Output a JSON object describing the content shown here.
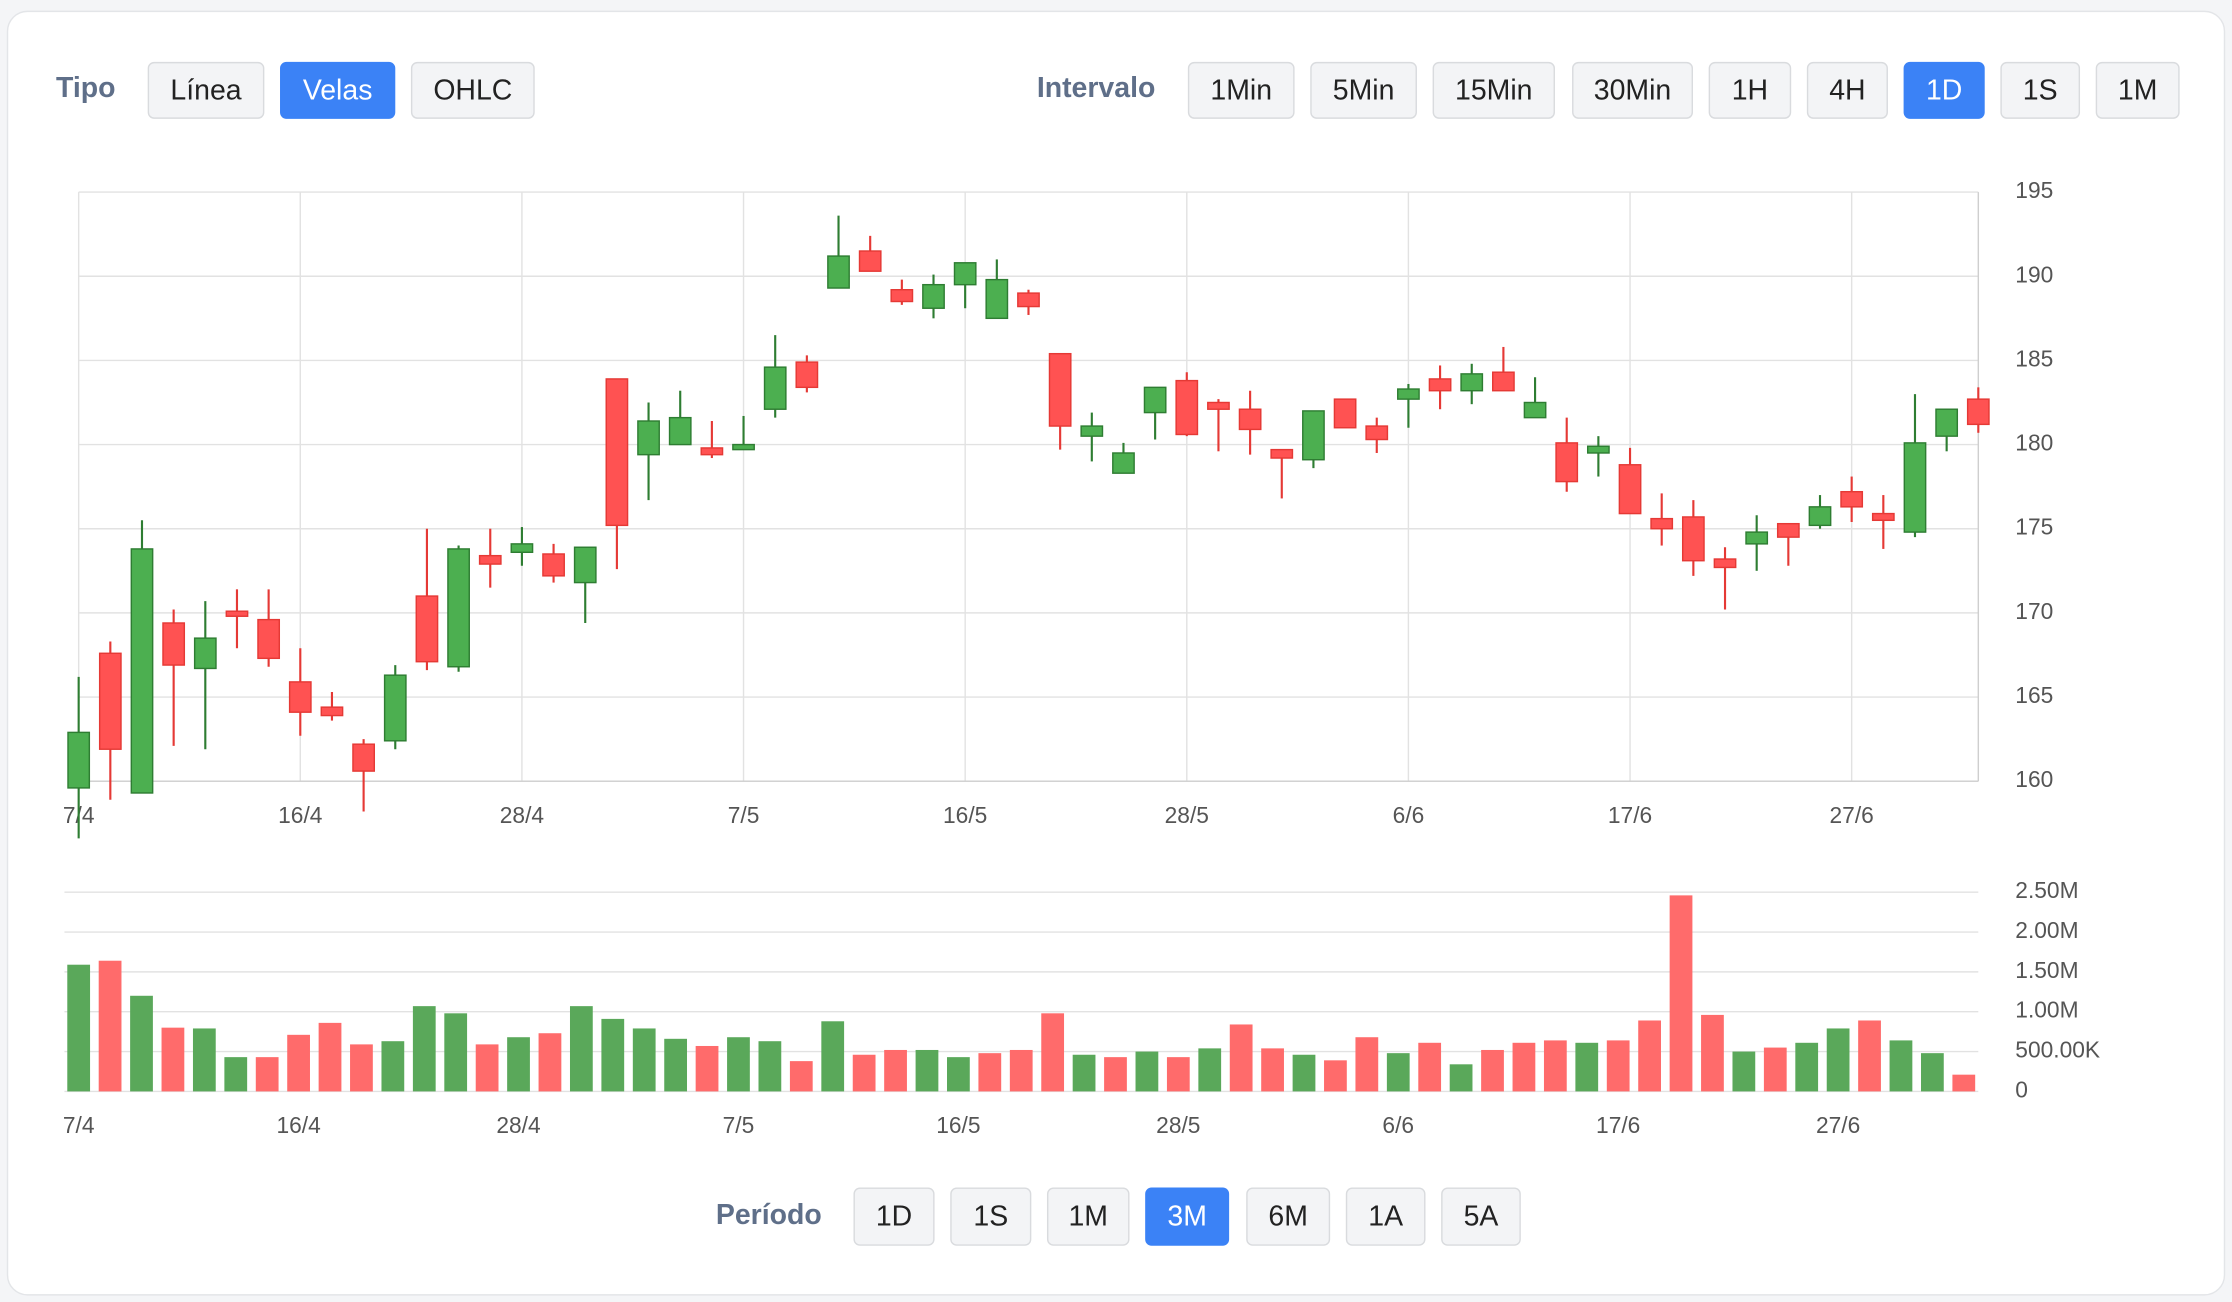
{
  "controls": {
    "tipo": {
      "label": "Tipo",
      "options": [
        "Línea",
        "Velas",
        "OHLC"
      ],
      "selected": 1
    },
    "intervalo": {
      "label": "Intervalo",
      "options": [
        "1Min",
        "5Min",
        "15Min",
        "30Min",
        "1H",
        "4H",
        "1D",
        "1S",
        "1M"
      ],
      "selected": 6
    },
    "periodo": {
      "label": "Período",
      "options": [
        "1D",
        "1S",
        "1M",
        "3M",
        "6M",
        "1A",
        "5A"
      ],
      "selected": 3
    }
  },
  "chart_data": [
    {
      "type": "candlestick",
      "categories": [
        "7/4",
        null,
        null,
        null,
        null,
        null,
        null,
        "16/4",
        null,
        null,
        null,
        null,
        null,
        null,
        "28/4",
        null,
        null,
        null,
        null,
        null,
        null,
        "7/5",
        null,
        null,
        null,
        null,
        null,
        null,
        "16/5",
        null,
        null,
        null,
        null,
        null,
        null,
        "28/5",
        null,
        null,
        null,
        null,
        null,
        null,
        "6/6",
        null,
        null,
        null,
        null,
        null,
        null,
        "17/6",
        null,
        null,
        null,
        null,
        null,
        null,
        "27/6",
        null,
        null,
        null,
        null
      ],
      "open": [
        159.6,
        167.6,
        159.3,
        169.4,
        166.7,
        170.1,
        169.6,
        165.9,
        164.4,
        162.2,
        162.4,
        171.0,
        166.8,
        173.4,
        173.6,
        173.5,
        171.8,
        183.9,
        179.4,
        180.0,
        179.8,
        179.7,
        182.1,
        184.9,
        189.3,
        191.5,
        189.2,
        188.1,
        189.5,
        187.5,
        189.0,
        185.4,
        180.5,
        178.3,
        181.9,
        183.8,
        182.5,
        182.1,
        179.7,
        179.1,
        182.7,
        181.1,
        182.7,
        183.9,
        183.2,
        184.3,
        181.6,
        180.1,
        179.5,
        178.8,
        175.6,
        175.7,
        173.2,
        174.1,
        175.3,
        175.2,
        177.2,
        175.9,
        174.8,
        180.5,
        182.7
      ],
      "high": [
        166.2,
        168.3,
        175.5,
        170.2,
        170.7,
        171.4,
        171.4,
        167.9,
        165.3,
        162.5,
        166.9,
        175.0,
        174.0,
        175.0,
        175.1,
        174.1,
        173.9,
        183.9,
        182.5,
        183.2,
        181.4,
        181.7,
        186.5,
        185.3,
        193.6,
        192.4,
        189.8,
        190.1,
        190.8,
        191.0,
        189.2,
        185.4,
        181.9,
        180.1,
        183.4,
        184.3,
        182.7,
        183.2,
        179.7,
        182.0,
        182.7,
        181.6,
        183.6,
        184.7,
        184.8,
        185.8,
        184.0,
        181.6,
        180.5,
        179.8,
        177.1,
        176.7,
        173.9,
        175.8,
        175.3,
        177.0,
        178.1,
        177.0,
        183.0,
        182.1,
        183.4
      ],
      "low": [
        156.6,
        158.9,
        159.3,
        162.1,
        161.9,
        167.9,
        166.8,
        162.7,
        163.6,
        158.2,
        161.9,
        166.6,
        166.5,
        171.5,
        172.8,
        171.8,
        169.4,
        172.6,
        176.7,
        180.0,
        179.2,
        179.7,
        181.6,
        183.1,
        189.3,
        190.3,
        188.3,
        187.5,
        188.1,
        187.5,
        187.7,
        179.7,
        179.0,
        178.3,
        180.3,
        180.5,
        179.6,
        179.4,
        176.8,
        178.6,
        181.0,
        179.5,
        181.0,
        182.1,
        182.4,
        183.2,
        181.6,
        177.2,
        178.1,
        175.9,
        174.0,
        172.2,
        170.2,
        172.5,
        172.8,
        175.0,
        175.4,
        173.8,
        174.5,
        179.6,
        180.7
      ],
      "close": [
        162.9,
        161.9,
        173.8,
        166.9,
        168.5,
        169.8,
        167.3,
        164.1,
        163.9,
        160.6,
        166.3,
        167.1,
        173.8,
        172.9,
        174.1,
        172.2,
        173.9,
        175.2,
        181.4,
        181.6,
        179.4,
        180.0,
        184.6,
        183.4,
        191.2,
        190.3,
        188.5,
        189.5,
        190.8,
        189.8,
        188.2,
        181.1,
        181.1,
        179.5,
        183.4,
        180.6,
        182.1,
        180.9,
        179.2,
        182.0,
        181.0,
        180.3,
        183.3,
        183.2,
        184.2,
        183.2,
        182.5,
        177.8,
        179.9,
        175.9,
        175.0,
        173.1,
        172.7,
        174.8,
        174.5,
        176.3,
        176.3,
        175.5,
        180.1,
        182.1,
        181.2
      ],
      "up_color": "#4caf50",
      "down_color": "#ff5252",
      "ylim": [
        160,
        195
      ],
      "yticks": [
        160,
        165,
        170,
        175,
        180,
        185,
        190,
        195
      ],
      "grid": true
    },
    {
      "type": "bar",
      "categories": [
        "7/4",
        null,
        null,
        null,
        null,
        null,
        null,
        "16/4",
        null,
        null,
        null,
        null,
        null,
        null,
        "28/4",
        null,
        null,
        null,
        null,
        null,
        null,
        "7/5",
        null,
        null,
        null,
        null,
        null,
        null,
        "16/5",
        null,
        null,
        null,
        null,
        null,
        null,
        "28/5",
        null,
        null,
        null,
        null,
        null,
        null,
        "6/6",
        null,
        null,
        null,
        null,
        null,
        null,
        "17/6",
        null,
        null,
        null,
        null,
        null,
        null,
        "27/6",
        null,
        null,
        null,
        null
      ],
      "values": [
        1590000,
        1640000,
        1200000,
        800000,
        790000,
        430000,
        430000,
        710000,
        860000,
        590000,
        630000,
        1070000,
        980000,
        590000,
        680000,
        730000,
        1070000,
        910000,
        790000,
        660000,
        570000,
        680000,
        630000,
        380000,
        880000,
        460000,
        520000,
        520000,
        430000,
        480000,
        520000,
        980000,
        460000,
        430000,
        500000,
        430000,
        540000,
        840000,
        540000,
        460000,
        390000,
        680000,
        480000,
        610000,
        340000,
        520000,
        610000,
        640000,
        610000,
        640000,
        890000,
        2460000,
        960000,
        500000,
        550000,
        610000,
        790000,
        890000,
        640000,
        480000,
        210000
      ],
      "up_color": "#5aa85a",
      "down_color": "#ff6b6b",
      "ylim": [
        0,
        2500000
      ],
      "yticks": [
        0,
        {
          "value": 500000,
          "label": "500.00K"
        },
        {
          "value": 1000000,
          "label": "1.00M"
        },
        {
          "value": 1500000,
          "label": "1.50M"
        },
        {
          "value": 2000000,
          "label": "2.00M"
        },
        {
          "value": 2500000,
          "label": "2.50M"
        }
      ],
      "grid": true
    }
  ]
}
